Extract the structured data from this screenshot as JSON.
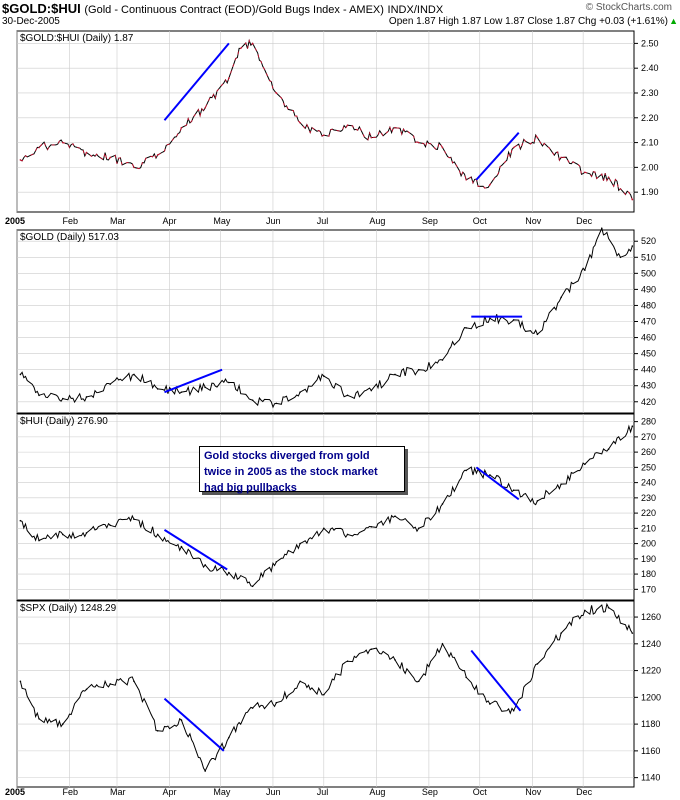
{
  "header": {
    "symbol": "$GOLD:$HUI",
    "description": "(Gold - Continuous Contract (EOD)/Gold Bugs Index - AMEX)",
    "exchange": "INDX/INDX",
    "date": "30-Dec-2005",
    "watermark": "© StockCharts.com",
    "quote": "Open 1.87 High 1.87 Low 1.87 Close 1.87 Chg +0.03 (+1.61%)"
  },
  "annotation": {
    "lines": [
      "Gold stocks diverged from gold",
      "twice in 2005 as the stock market",
      "had big pullbacks"
    ]
  },
  "colors": {
    "ratio_line": "#c8102e",
    "price_line": "#000000",
    "trend_line": "#0000ff",
    "grid": "#cccccc",
    "annotation_text": "#00008b"
  },
  "chart_data": [
    {
      "type": "line",
      "title": "$GOLD:$HUI (Daily) 1.87",
      "x_labels": [
        "2005",
        "Feb",
        "Mar",
        "Apr",
        "May",
        "Jun",
        "Jul",
        "Aug",
        "Sep",
        "Oct",
        "Nov",
        "Dec"
      ],
      "y_ticks": [
        1.9,
        2.0,
        2.1,
        2.2,
        2.3,
        2.4,
        2.5
      ],
      "y_tick_labels": [
        "1.90",
        "2.00",
        "2.10",
        "2.20",
        "2.30",
        "2.40",
        "2.50"
      ],
      "ylim": [
        1.82,
        2.55
      ],
      "grid": true,
      "series_color": "#c8102e",
      "x": [
        "2005-01-03",
        "2005-01-14",
        "2005-01-28",
        "2005-02-11",
        "2005-02-25",
        "2005-03-11",
        "2005-03-25",
        "2005-04-08",
        "2005-04-22",
        "2005-05-06",
        "2005-05-13",
        "2005-05-20",
        "2005-06-03",
        "2005-06-17",
        "2005-07-01",
        "2005-07-15",
        "2005-07-29",
        "2005-08-12",
        "2005-08-26",
        "2005-09-09",
        "2005-09-23",
        "2005-10-07",
        "2005-10-21",
        "2005-11-04",
        "2005-11-18",
        "2005-12-02",
        "2005-12-16",
        "2005-12-30"
      ],
      "values": [
        2.03,
        2.08,
        2.1,
        2.06,
        2.04,
        2.0,
        2.05,
        2.16,
        2.24,
        2.36,
        2.48,
        2.5,
        2.3,
        2.18,
        2.13,
        2.17,
        2.12,
        2.16,
        2.1,
        2.08,
        1.95,
        1.93,
        2.08,
        2.12,
        2.04,
        1.98,
        1.96,
        1.87
      ],
      "trend_lines": [
        {
          "x": [
            "2005-03-29",
            "2005-05-06"
          ],
          "y": [
            2.19,
            2.5
          ]
        },
        {
          "x": [
            "2005-09-29",
            "2005-10-24"
          ],
          "y": [
            1.95,
            2.14
          ]
        }
      ]
    },
    {
      "type": "line",
      "title": "$GOLD (Daily) 517.03",
      "y_ticks": [
        420,
        430,
        440,
        450,
        460,
        470,
        480,
        490,
        500,
        510,
        520
      ],
      "y_tick_labels": [
        "420",
        "430",
        "440",
        "450",
        "460",
        "470",
        "480",
        "490",
        "500",
        "510",
        "520"
      ],
      "ylim": [
        413,
        527
      ],
      "grid": true,
      "series_color": "#000000",
      "x": [
        "2005-01-03",
        "2005-01-14",
        "2005-01-28",
        "2005-02-11",
        "2005-02-25",
        "2005-03-11",
        "2005-03-25",
        "2005-04-08",
        "2005-04-22",
        "2005-05-06",
        "2005-05-20",
        "2005-06-03",
        "2005-06-17",
        "2005-07-01",
        "2005-07-15",
        "2005-07-29",
        "2005-08-12",
        "2005-08-26",
        "2005-09-09",
        "2005-09-23",
        "2005-10-07",
        "2005-10-21",
        "2005-11-04",
        "2005-11-18",
        "2005-12-02",
        "2005-12-12",
        "2005-12-23",
        "2005-12-30"
      ],
      "values": [
        437,
        424,
        422,
        423,
        431,
        437,
        428,
        426,
        429,
        432,
        421,
        419,
        426,
        436,
        424,
        427,
        437,
        440,
        446,
        466,
        472,
        471,
        462,
        485,
        502,
        528,
        510,
        517
      ],
      "trend_lines": [
        {
          "x": [
            "2005-03-29",
            "2005-05-02"
          ],
          "y": [
            426,
            440
          ]
        },
        {
          "x": [
            "2005-09-26",
            "2005-10-26"
          ],
          "y": [
            473,
            473
          ]
        }
      ]
    },
    {
      "type": "line",
      "title": "$HUI (Daily) 276.90",
      "y_ticks": [
        170,
        180,
        190,
        200,
        210,
        220,
        230,
        240,
        250,
        260,
        270,
        280
      ],
      "y_tick_labels": [
        "170",
        "180",
        "190",
        "200",
        "210",
        "220",
        "230",
        "240",
        "250",
        "260",
        "270",
        "280"
      ],
      "ylim": [
        163,
        285
      ],
      "grid": true,
      "series_color": "#000000",
      "x": [
        "2005-01-03",
        "2005-01-14",
        "2005-01-28",
        "2005-02-11",
        "2005-02-25",
        "2005-03-11",
        "2005-03-25",
        "2005-04-08",
        "2005-04-22",
        "2005-05-06",
        "2005-05-20",
        "2005-06-03",
        "2005-06-17",
        "2005-07-01",
        "2005-07-15",
        "2005-07-29",
        "2005-08-12",
        "2005-08-26",
        "2005-09-09",
        "2005-09-23",
        "2005-10-07",
        "2005-10-21",
        "2005-11-04",
        "2005-11-18",
        "2005-12-02",
        "2005-12-16",
        "2005-12-30"
      ],
      "values": [
        215,
        202,
        206,
        207,
        212,
        216,
        206,
        198,
        186,
        181,
        172,
        188,
        200,
        210,
        206,
        211,
        218,
        210,
        226,
        248,
        245,
        235,
        228,
        239,
        252,
        262,
        277
      ],
      "trend_lines": [
        {
          "x": [
            "2005-03-29",
            "2005-05-05"
          ],
          "y": [
            209,
            183
          ]
        },
        {
          "x": [
            "2005-09-29",
            "2005-10-24"
          ],
          "y": [
            250,
            229
          ]
        }
      ]
    },
    {
      "type": "line",
      "title": "$SPX (Daily) 1248.29",
      "x_labels": [
        "2005",
        "Feb",
        "Mar",
        "Apr",
        "May",
        "Jun",
        "Jul",
        "Aug",
        "Sep",
        "Oct",
        "Nov",
        "Dec"
      ],
      "y_ticks": [
        1140,
        1160,
        1180,
        1200,
        1220,
        1240,
        1260
      ],
      "y_tick_labels": [
        "1140",
        "1160",
        "1180",
        "1200",
        "1220",
        "1240",
        "1260"
      ],
      "ylim": [
        1133,
        1272
      ],
      "grid": true,
      "series_color": "#000000",
      "x": [
        "2005-01-03",
        "2005-01-14",
        "2005-01-28",
        "2005-02-11",
        "2005-02-25",
        "2005-03-11",
        "2005-03-25",
        "2005-04-08",
        "2005-04-22",
        "2005-05-06",
        "2005-05-20",
        "2005-06-03",
        "2005-06-17",
        "2005-07-01",
        "2005-07-15",
        "2005-07-29",
        "2005-08-12",
        "2005-08-26",
        "2005-09-09",
        "2005-09-23",
        "2005-10-07",
        "2005-10-21",
        "2005-11-04",
        "2005-11-18",
        "2005-12-02",
        "2005-12-16",
        "2005-12-30"
      ],
      "values": [
        1212,
        1184,
        1180,
        1206,
        1210,
        1212,
        1175,
        1183,
        1145,
        1170,
        1192,
        1196,
        1212,
        1202,
        1227,
        1236,
        1228,
        1212,
        1240,
        1215,
        1195,
        1190,
        1225,
        1248,
        1265,
        1267,
        1248
      ],
      "trend_lines": [
        {
          "x": [
            "2005-03-29",
            "2005-05-03"
          ],
          "y": [
            1199,
            1160
          ]
        },
        {
          "x": [
            "2005-09-26",
            "2005-10-25"
          ],
          "y": [
            1235,
            1190
          ]
        }
      ]
    }
  ]
}
